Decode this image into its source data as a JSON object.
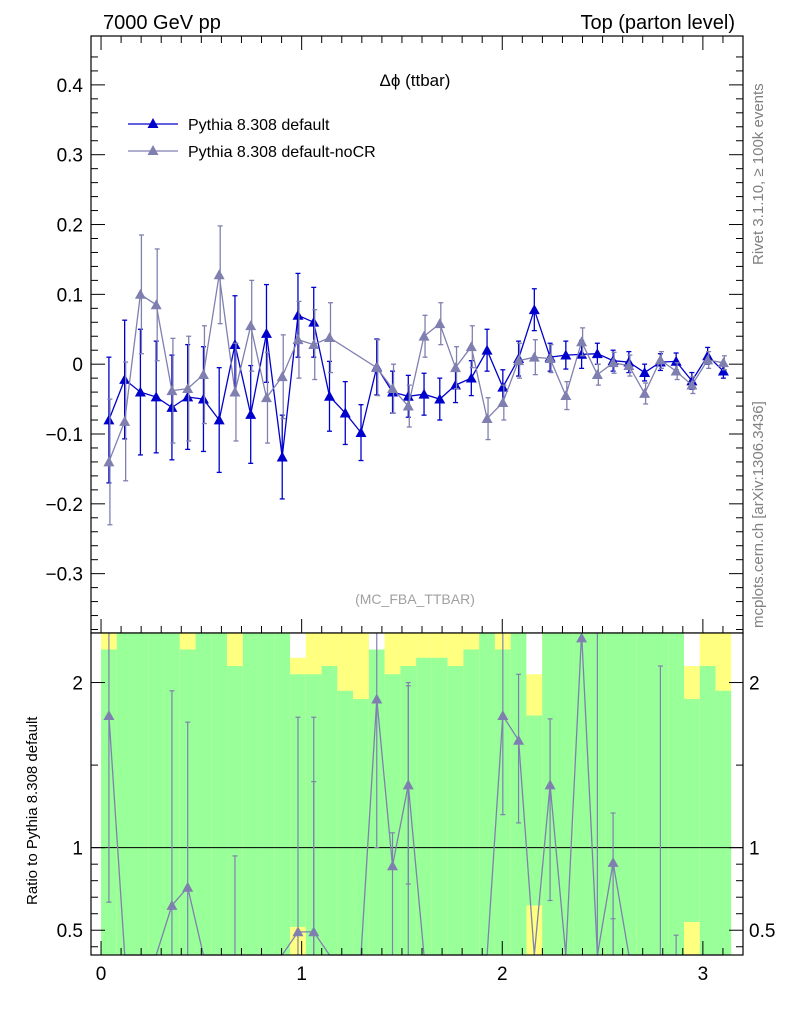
{
  "header": {
    "left": "7000 GeV pp",
    "right": "Top (parton level)"
  },
  "side": {
    "rivet": "Rivet 3.1.10, ≥ 100k events",
    "mcplots": "mcplots.cern.ch [arXiv:1306.3436]"
  },
  "chart_data": [
    {
      "type": "line",
      "title": "Δϕ (ttbar)",
      "analysis_label": "(MC_FBA_TTBAR)",
      "xlim": [
        -0.05,
        3.2
      ],
      "ylim": [
        -0.385,
        0.47
      ],
      "yticks": [
        -0.3,
        -0.2,
        -0.1,
        0,
        0.1,
        0.2,
        0.3,
        0.4
      ],
      "ytick_labels": [
        "−0.3",
        "−0.2",
        "−0.1",
        "0",
        "0.1",
        "0.2",
        "0.3",
        "0.4"
      ],
      "legend_position": "top-left",
      "grid": false,
      "series": [
        {
          "name": "Pythia 8.308 default",
          "color": "#0000cc",
          "x": [
            0.0393,
            0.1178,
            0.1963,
            0.2749,
            0.3534,
            0.432,
            0.5105,
            0.589,
            0.6676,
            0.7461,
            0.8247,
            0.9032,
            0.9817,
            1.0603,
            1.1388,
            1.2174,
            1.2959,
            1.3744,
            1.453,
            1.5315,
            1.6101,
            1.6886,
            1.7671,
            1.8457,
            1.9242,
            2.0028,
            2.0813,
            2.1598,
            2.2384,
            2.3169,
            2.3955,
            2.474,
            2.5525,
            2.6311,
            2.7096,
            2.7882,
            2.8667,
            2.9452,
            3.0238,
            3.1023
          ],
          "y": [
            -0.08,
            -0.022,
            -0.04,
            -0.047,
            -0.062,
            -0.047,
            -0.05,
            -0.08,
            0.028,
            -0.072,
            0.044,
            -0.133,
            0.07,
            0.06,
            -0.046,
            -0.07,
            -0.098,
            -0.004,
            -0.04,
            -0.046,
            -0.043,
            -0.05,
            -0.03,
            -0.02,
            0.02,
            -0.033,
            0.008,
            0.078,
            0.01,
            0.013,
            0.014,
            0.015,
            0.005,
            0.003,
            -0.012,
            0.003,
            0.004,
            -0.024,
            0.012,
            -0.01
          ],
          "err": [
            0.09,
            0.085,
            0.09,
            0.08,
            0.075,
            0.075,
            0.075,
            0.075,
            0.07,
            0.07,
            0.07,
            0.06,
            0.06,
            0.05,
            0.05,
            0.045,
            0.04,
            0.04,
            0.03,
            0.03,
            0.03,
            0.03,
            0.025,
            0.025,
            0.03,
            0.025,
            0.025,
            0.03,
            0.02,
            0.02,
            0.02,
            0.015,
            0.015,
            0.015,
            0.012,
            0.012,
            0.012,
            0.012,
            0.012,
            0.01
          ]
        },
        {
          "name": "Pythia 8.308 default-noCR",
          "color": "#8080b0",
          "x": [
            0.0393,
            0.1178,
            0.1963,
            0.2749,
            0.3534,
            0.432,
            0.5105,
            0.589,
            0.6676,
            0.7461,
            0.8247,
            0.9032,
            0.9817,
            1.0603,
            1.1388,
            1.2174,
            1.2959,
            1.3744,
            1.453,
            1.5315,
            1.6101,
            1.6886,
            1.7671,
            1.8457,
            1.9242,
            2.0028,
            2.0813,
            2.1598,
            2.2384,
            2.3169,
            2.3955,
            2.474,
            2.5525,
            2.6311,
            2.7096,
            2.7882,
            2.8667,
            2.9452,
            3.0238,
            3.1023
          ],
          "y": [
            -0.14,
            -0.082,
            0.1,
            0.085,
            -0.038,
            -0.035,
            -0.015,
            0.128,
            -0.04,
            0.055,
            -0.048,
            -0.018,
            0.035,
            0.028,
            0.038,
            null,
            null,
            -0.005,
            -0.035,
            -0.06,
            0.04,
            0.058,
            -0.005,
            0.025,
            -0.078,
            -0.055,
            0.005,
            0.01,
            0.008,
            -0.045,
            0.032,
            -0.015,
            0.002,
            -0.002,
            -0.042,
            0.006,
            -0.01,
            -0.03,
            0.006,
            0.002
          ],
          "err": [
            0.09,
            0.085,
            0.085,
            0.08,
            0.075,
            0.075,
            0.07,
            0.07,
            0.07,
            0.065,
            0.065,
            0.06,
            0.055,
            0.05,
            0.05,
            0.045,
            0.04,
            0.04,
            0.035,
            0.03,
            0.03,
            0.03,
            0.03,
            0.03,
            0.03,
            0.025,
            0.025,
            0.025,
            0.02,
            0.02,
            0.02,
            0.015,
            0.015,
            0.015,
            0.015,
            0.012,
            0.012,
            0.012,
            0.012,
            0.01
          ]
        }
      ]
    },
    {
      "type": "line",
      "ylabel": "Ratio to Pythia 8.308 default",
      "xlim": [
        -0.05,
        3.2
      ],
      "ylim": [
        0.35,
        2.3
      ],
      "yticks": [
        0.5,
        1,
        2
      ],
      "ytick_labels": [
        "0.5",
        "1",
        "2"
      ],
      "xticks": [
        0,
        1,
        2,
        3
      ],
      "xtick_labels": [
        "0",
        "1",
        "2",
        "3"
      ],
      "reference_line": 1,
      "bands": {
        "bin_edges": [
          0.0,
          0.0785,
          0.1571,
          0.2356,
          0.3142,
          0.3927,
          0.4712,
          0.5498,
          0.6283,
          0.7069,
          0.7854,
          0.8639,
          0.9425,
          1.021,
          1.0996,
          1.1781,
          1.2566,
          1.3352,
          1.4137,
          1.4923,
          1.5708,
          1.6493,
          1.7279,
          1.8064,
          1.885,
          1.9635,
          2.042,
          2.1206,
          2.1991,
          2.2777,
          2.3562,
          2.4347,
          2.5133,
          2.5918,
          2.6704,
          2.7489,
          2.8274,
          2.906,
          2.9845,
          3.0631,
          3.1416
        ],
        "outer_high": [
          2.3,
          2.3,
          2.3,
          2.3,
          2.3,
          2.3,
          2.3,
          2.3,
          2.3,
          2.3,
          2.3,
          2.3,
          2.3,
          2.3,
          2.3,
          2.3,
          2.3,
          2.3,
          2.3,
          2.3,
          2.3,
          2.3,
          2.3,
          2.3,
          2.3,
          2.3,
          2.3,
          2.3,
          2.3,
          2.3,
          2.3,
          2.3,
          2.3,
          2.3,
          2.3,
          2.3,
          2.3,
          2.3,
          2.3,
          2.3
        ],
        "outer_low": [
          0.35,
          0.35,
          0.35,
          0.35,
          0.35,
          0.35,
          0.35,
          0.35,
          0.35,
          0.35,
          0.35,
          0.35,
          0.35,
          0.35,
          0.35,
          0.35,
          0.35,
          0.35,
          0.35,
          0.35,
          0.35,
          0.35,
          0.35,
          0.35,
          0.35,
          0.35,
          0.35,
          0.35,
          0.35,
          0.35,
          0.35,
          0.35,
          0.35,
          0.35,
          0.35,
          0.35,
          0.35,
          0.35,
          0.35,
          0.35
        ],
        "inner_high": [
          2.2,
          2.3,
          2.3,
          2.3,
          2.3,
          2.2,
          2.3,
          2.3,
          2.1,
          2.3,
          2.3,
          2.3,
          2.05,
          2.05,
          2.1,
          1.95,
          1.9,
          2.3,
          2.05,
          2.1,
          2.15,
          2.15,
          2.1,
          2.2,
          2.3,
          2.2,
          2.3,
          1.8,
          2.3,
          2.3,
          2.3,
          2.3,
          2.3,
          2.3,
          2.3,
          2.3,
          2.3,
          1.9,
          2.1,
          1.95
        ],
        "inner_low": [
          0.35,
          0.35,
          0.35,
          0.35,
          0.35,
          0.35,
          0.35,
          0.35,
          0.35,
          0.35,
          0.35,
          0.35,
          0.35,
          0.35,
          0.35,
          0.35,
          0.35,
          0.35,
          0.35,
          0.35,
          0.35,
          0.35,
          0.35,
          0.35,
          0.35,
          0.35,
          0.35,
          0.35,
          0.35,
          0.35,
          0.35,
          0.35,
          0.35,
          0.35,
          0.35,
          0.35,
          0.35,
          0.35,
          0.35,
          0.35
        ],
        "white_high": [
          2.3,
          2.3,
          2.3,
          2.3,
          2.3,
          2.3,
          2.3,
          2.3,
          2.3,
          2.3,
          2.3,
          2.3,
          2.3,
          2.3,
          2.3,
          2.3,
          2.3,
          2.3,
          2.3,
          2.3,
          2.3,
          2.3,
          2.3,
          2.3,
          2.3,
          2.3,
          2.3,
          2.3,
          2.3,
          2.3,
          2.3,
          2.3,
          2.3,
          2.3,
          2.3,
          2.3,
          2.3,
          2.3,
          2.3,
          2.3
        ],
        "white_low": [
          2.3,
          2.3,
          2.3,
          2.3,
          2.3,
          2.3,
          2.3,
          2.3,
          2.3,
          2.3,
          2.3,
          2.3,
          2.15,
          2.3,
          2.3,
          2.3,
          2.3,
          2.2,
          2.3,
          2.3,
          2.3,
          2.3,
          2.3,
          2.3,
          2.3,
          2.3,
          2.3,
          2.05,
          2.3,
          2.3,
          2.3,
          2.3,
          2.3,
          2.3,
          2.3,
          2.3,
          2.3,
          2.1,
          2.3,
          2.3
        ],
        "inner_low_yellow": [
          0.35,
          0.35,
          0.35,
          0.35,
          0.35,
          0.35,
          0.35,
          0.35,
          0.35,
          0.35,
          0.35,
          0.35,
          0.52,
          0.35,
          0.35,
          0.35,
          0.35,
          0.35,
          0.35,
          0.35,
          0.35,
          0.35,
          0.35,
          0.35,
          0.35,
          0.35,
          0.35,
          0.65,
          0.35,
          0.35,
          0.35,
          0.35,
          0.35,
          0.35,
          0.35,
          0.35,
          0.35,
          0.55,
          0.35,
          0.35
        ],
        "outer_color": "#ffff80",
        "inner_color": "#99ff99",
        "white_color": "#ffffff"
      },
      "series": [
        {
          "name": "Pythia 8.308 default-noCR",
          "color": "#8080b0",
          "x": [
            0.0393,
            0.3534,
            0.432,
            0.9817,
            1.0603,
            1.3744,
            1.453,
            1.5315,
            2.0028,
            2.0813,
            2.2384,
            2.5525
          ],
          "y": [
            1.8,
            0.65,
            0.76,
            0.49,
            0.49,
            1.9,
            0.89,
            1.38,
            1.8,
            1.65,
            1.38,
            0.91
          ],
          "err_low": [
            1.13,
            0.3,
            0.41,
            0.14,
            0.14,
            0.9,
            0.54,
            0.6,
            0.6,
            0.5,
            0.7,
            0.56
          ],
          "err_high": [
            0.5,
            1.3,
            1.0,
            1.3,
            1.3,
            0.4,
            0.2,
            0.6,
            0.5,
            0.4,
            0.4,
            0.3
          ]
        }
      ],
      "extra_error_bars": {
        "x": [
          0.6676,
          1.0603,
          1.5315,
          2.7882,
          2.5525,
          2.8667,
          2.474
        ],
        "low": [
          0.35,
          0.35,
          0.35,
          0.35,
          0.35,
          0.35,
          0.35
        ],
        "high": [
          0.95,
          1.4,
          2.0,
          2.1,
          0.57,
          0.47,
          2.3
        ]
      }
    }
  ]
}
